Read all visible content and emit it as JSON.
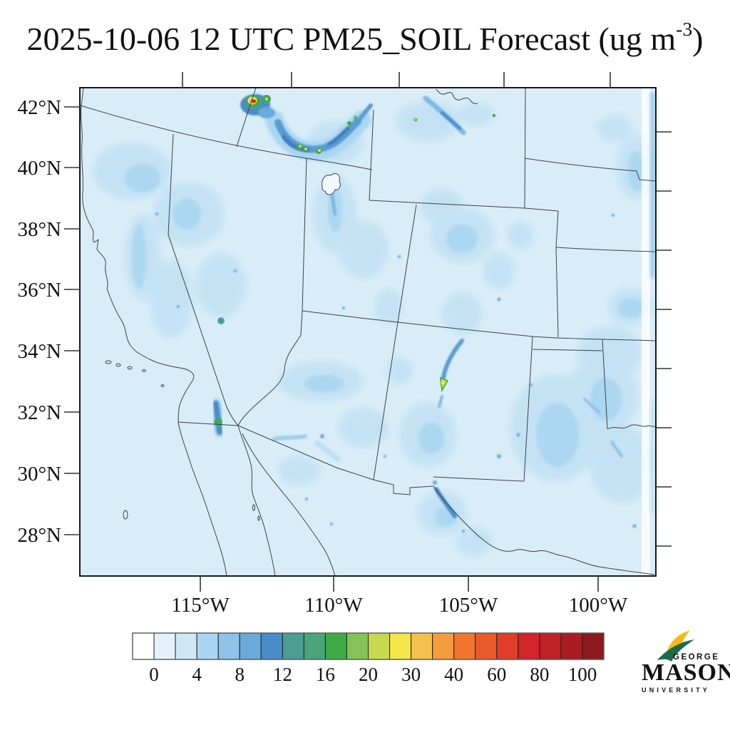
{
  "title": {
    "main": "2025-10-06 12 UTC PM25_SOIL Forecast (ug m",
    "sup": "-3",
    "close": ")"
  },
  "map": {
    "lat_tick_labels": [
      "42°N",
      "40°N",
      "38°N",
      "36°N",
      "34°N",
      "32°N",
      "30°N",
      "28°N"
    ],
    "lon_tick_labels": [
      "115°W",
      "110°W",
      "105°W",
      "100°W"
    ]
  },
  "colorbar": {
    "labels": [
      "0",
      "4",
      "8",
      "12",
      "16",
      "20",
      "30",
      "40",
      "60",
      "80",
      "100"
    ],
    "colors": [
      "#ffffff",
      "#e3f1fb",
      "#cfe8f8",
      "#a9d6f1",
      "#8fc3e8",
      "#6aa9d9",
      "#4a8cc8",
      "#4c9d93",
      "#4aa57a",
      "#3fab47",
      "#84c457",
      "#c6d94f",
      "#f4e54b",
      "#f4c14c",
      "#f59c3f",
      "#f0762e",
      "#ea5a2a",
      "#e03e2a",
      "#d2242b",
      "#c02026",
      "#a81c22",
      "#8c191d"
    ]
  },
  "logo": {
    "george": "GEORGE",
    "mason": "MASON",
    "university": "UNIVERSITY",
    "green": "#1a6b4a",
    "gold": "#fdb913"
  },
  "colors": {
    "map_fill": "#d9edf8",
    "frame": "#000000",
    "state_border": "#3c4248"
  },
  "chart_data": {
    "type": "heatmap",
    "title": "2025-10-06 12 UTC PM25_SOIL Forecast (ug m-3)",
    "region": "Southwestern United States and northern Mexico",
    "x_tick_labels": [
      "115°W",
      "110°W",
      "105°W",
      "100°W"
    ],
    "y_tick_labels": [
      "42°N",
      "40°N",
      "38°N",
      "36°N",
      "34°N",
      "32°N",
      "30°N",
      "28°N"
    ],
    "colorbar_tick_values": [
      0,
      4,
      8,
      12,
      16,
      20,
      30,
      40,
      60,
      80,
      100
    ],
    "n_color_bins": 22,
    "background_field": "0-2 ug m-3 (pale blue) over most of the domain, including ocean",
    "hotspots": [
      {
        "location": "Great Salt Lake Desert / Utah-Idaho border",
        "peak": ">100"
      },
      {
        "location": "Snake River Plain arc, southern Idaho",
        "peak": "20-40"
      },
      {
        "location": "White Sands area, New Mexico",
        "peak": "~30"
      },
      {
        "location": "Colorado River delta, Sonora",
        "peak": "~20"
      },
      {
        "location": "central Nevada",
        "peak": "~16"
      },
      {
        "location": "southern Wyoming streak",
        "peak": "~16"
      },
      {
        "location": "eastern New Mexico / west Texas broad haze",
        "peak": "2-4"
      }
    ]
  }
}
